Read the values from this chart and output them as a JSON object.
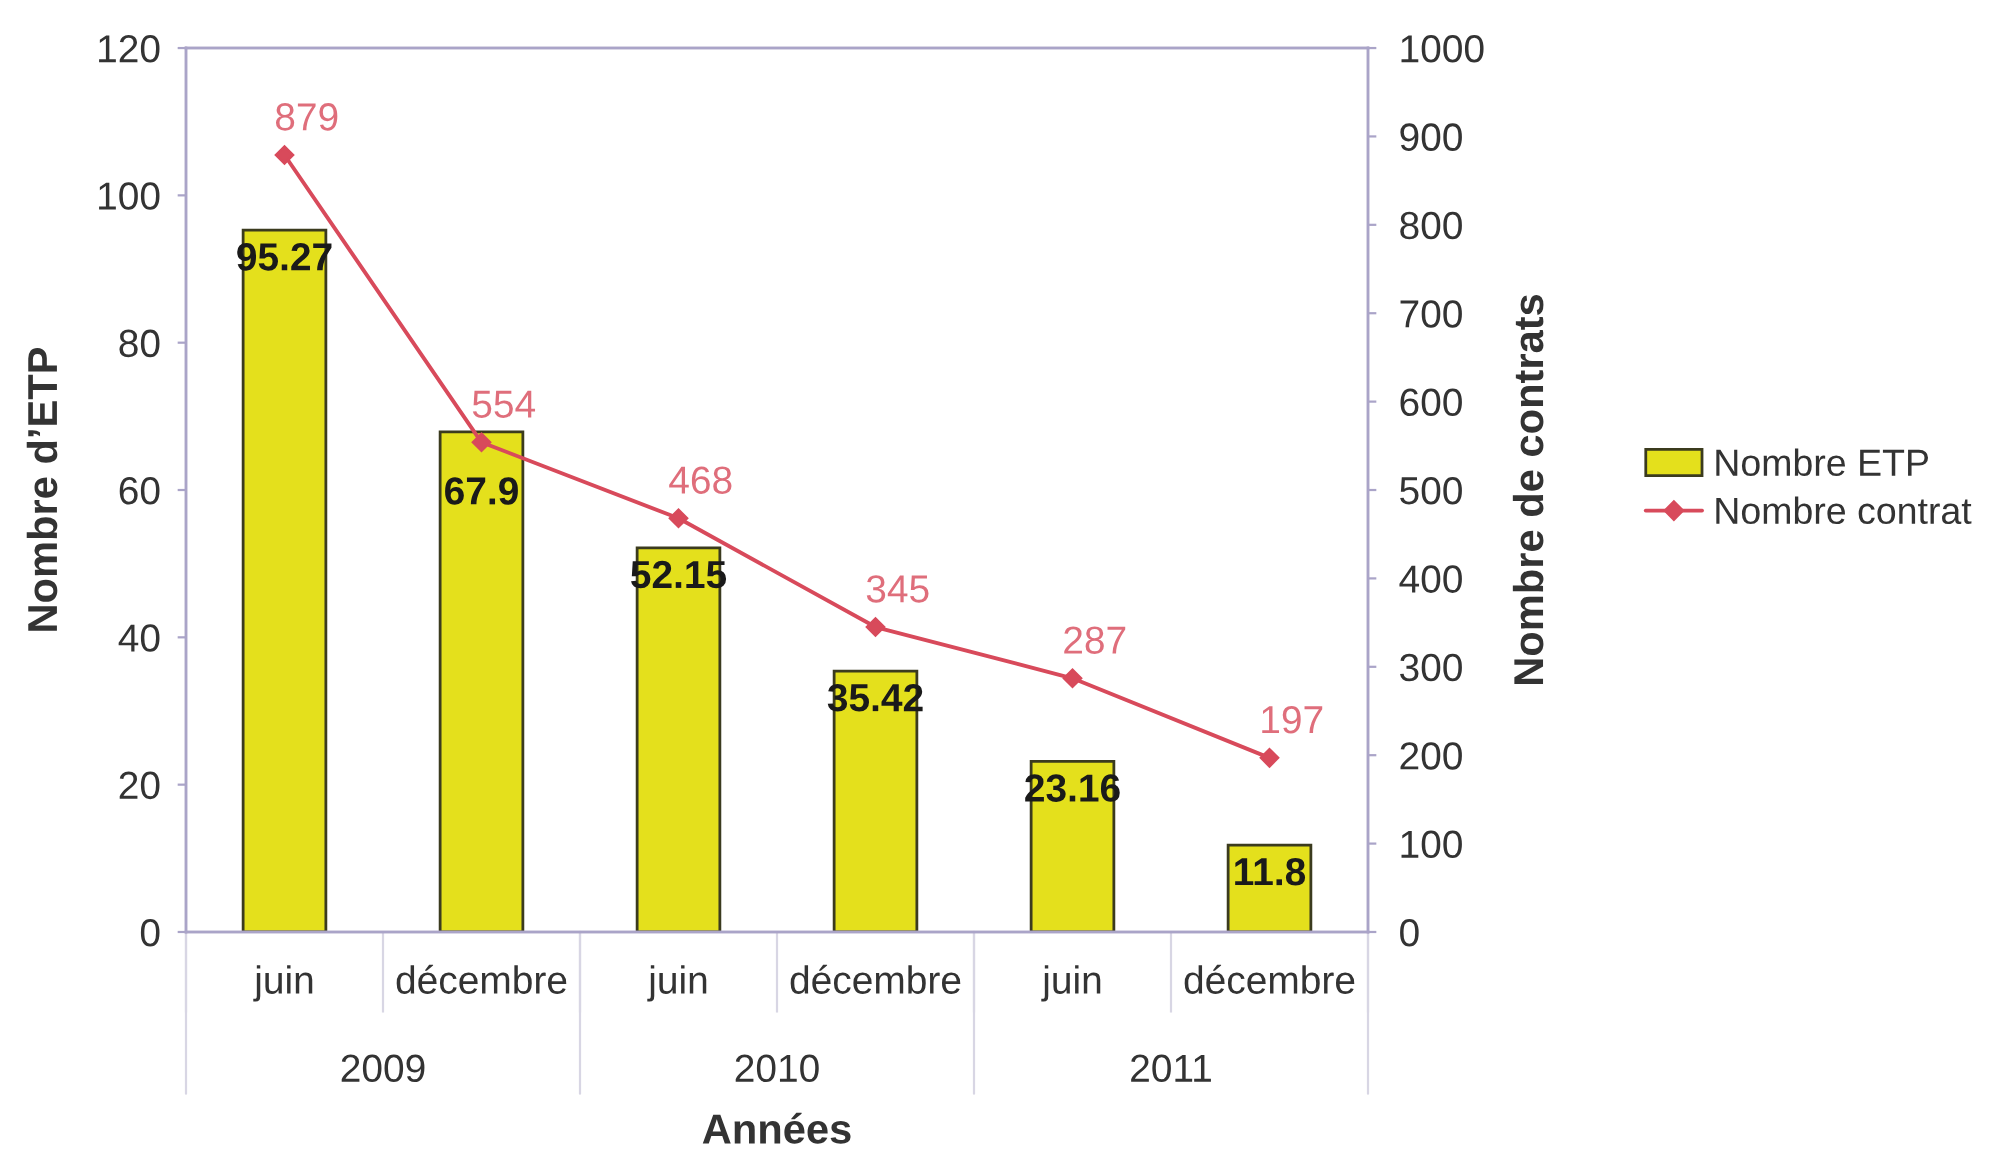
{
  "chart_data": {
    "type": "bar",
    "categories": [
      "juin",
      "décembre",
      "juin",
      "décembre",
      "juin",
      "décembre"
    ],
    "xlabel": "Années",
    "ylabel": "Nombre d’ETP",
    "y2label": "Nombre de contrats",
    "annotations": [
      "2009",
      "2010",
      "2011"
    ],
    "series": [
      {
        "name": "Nombre ETP",
        "color": "#e4e01c",
        "values": [
          95.27,
          67.9,
          52.15,
          35.42,
          23.16,
          11.8
        ]
      },
      {
        "name": "Nombre contrat",
        "type": "line",
        "axis": "y2",
        "color": "#d84a5b",
        "marker": "diamond",
        "line_style": "solid",
        "values": [
          879,
          554,
          468,
          345,
          287,
          197
        ]
      }
    ],
    "ylim": [
      0,
      120
    ],
    "yticks": [
      0,
      20,
      40,
      60,
      80,
      100,
      120
    ],
    "y2lim": [
      0,
      1000
    ],
    "y2ticks": [
      0,
      100,
      200,
      300,
      400,
      500,
      600,
      700,
      800,
      900,
      1000
    ],
    "data_labels": true,
    "legend": "right",
    "grid": false
  }
}
